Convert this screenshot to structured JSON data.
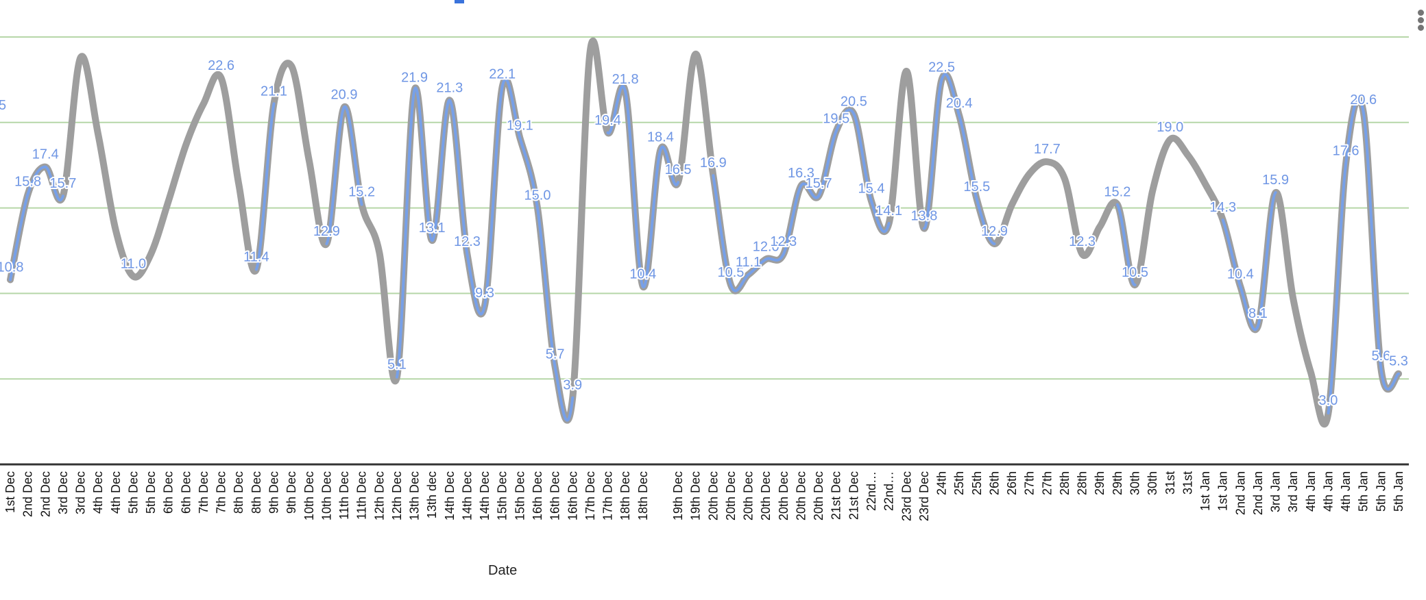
{
  "chart_data": {
    "type": "line",
    "curve": "smooth",
    "xlabel": "Date",
    "ylabel": "",
    "ylim": [
      0,
      25
    ],
    "gridlines": [
      5,
      10,
      15,
      20,
      25
    ],
    "grid": true,
    "clipped_left_label": "5",
    "categories": [
      "1st Dec",
      "2nd Dec",
      "2nd Dec",
      "3rd Dec",
      "3rd Dec",
      "4th Dec",
      "4th Dec",
      "5th Dec",
      "5th Dec",
      "6th Dec",
      "6th Dec",
      "7th Dec",
      "7th Dec",
      "8th Dec",
      "8th Dec",
      "9th Dec",
      "9th Dec",
      "10th Dec",
      "10th Dec",
      "11th Dec",
      "11th Dec",
      "12th Dec",
      "12th Dec",
      "13th Dec",
      "13th dec",
      "14th Dec",
      "14th Dec",
      "14th Dec",
      "15th Dec",
      "15th Dec",
      "16th Dec",
      "16th Dec",
      "16th Dec",
      "17th Dec",
      "17th Dec",
      "18th Dec",
      "18th Dec",
      "",
      "19th Dec",
      "19th Dec",
      "20th Dec",
      "20th Dec",
      "20th Dec",
      "20th Dec",
      "20th Dec",
      "20th Dec",
      "20th Dec",
      "21st Dec",
      "21st Dec",
      "22nd…",
      "22nd…",
      "23rd Dec",
      "23rd Dec",
      "24th",
      "25th",
      "25th",
      "26th",
      "26th",
      "27th",
      "27th",
      "28th",
      "28th",
      "29th",
      "29th",
      "30th",
      "30th",
      "31st",
      "31st",
      "1st Jan",
      "1st Jan",
      "2nd Jan",
      "2nd Jan",
      "3rd Jan",
      "3rd Jan",
      "4th Jan",
      "4th Jan",
      "4th Jan",
      "5th Jan",
      "5th Jan",
      "5th Jan"
    ],
    "series": [
      {
        "name": "all",
        "color": "#9e9e9e",
        "values": [
          10.8,
          15.8,
          17.4,
          15.7,
          23.8,
          19.3,
          13.7,
          11.0,
          12.3,
          15.4,
          18.7,
          21.1,
          22.6,
          16.4,
          11.4,
          21.1,
          23.3,
          17.8,
          12.9,
          20.9,
          15.2,
          12.4,
          5.1,
          21.9,
          13.1,
          21.3,
          12.3,
          9.3,
          22.1,
          19.1,
          15.0,
          5.7,
          3.9,
          24.2,
          19.4,
          21.8,
          10.4,
          18.4,
          16.5,
          24.0,
          16.9,
          10.5,
          11.1,
          12.0,
          12.3,
          16.3,
          15.7,
          19.5,
          20.5,
          15.4,
          14.1,
          23.0,
          13.8,
          22.5,
          20.4,
          15.5,
          12.9,
          15.2,
          17.0,
          17.7,
          16.7,
          12.3,
          13.9,
          15.2,
          10.5,
          16.0,
          19.0,
          18.1,
          16.4,
          14.3,
          10.4,
          8.1,
          15.9,
          9.7,
          5.4,
          3.0,
          17.6,
          20.6,
          5.6,
          5.3
        ]
      },
      {
        "name": "labeled",
        "color": "#77a0e8",
        "labels": [
          "10.8",
          "15.8",
          "17.4",
          "15.7",
          null,
          null,
          null,
          "11.0",
          null,
          null,
          null,
          null,
          "22.6",
          null,
          "11.4",
          "21.1",
          null,
          null,
          "12.9",
          "20.9",
          "15.2",
          null,
          "5.1",
          "21.9",
          "13.1",
          "21.3",
          "12.3",
          "9.3",
          "22.1",
          "19.1",
          "15.0",
          "5.7",
          "3.9",
          null,
          "19.4",
          "21.8",
          "10.4",
          "18.4",
          "16.5",
          null,
          "16.9",
          "10.5",
          "11.1",
          "12.0",
          "12.3",
          "16.3",
          "15.7",
          "19.5",
          "20.5",
          "15.4",
          "14.1",
          null,
          "13.8",
          "22.5",
          "20.4",
          "15.5",
          "12.9",
          null,
          null,
          "17.7",
          null,
          "12.3",
          null,
          "15.2",
          "10.5",
          null,
          "19.0",
          null,
          null,
          "14.3",
          "10.4",
          "8.1",
          "15.9",
          null,
          null,
          "3.0",
          "17.6",
          "20.6",
          "5.6",
          "5.3"
        ]
      }
    ],
    "colors": {
      "grid": "#b6d7a8",
      "axis": "#333333",
      "legend_swatch": "#3a73dc"
    }
  }
}
